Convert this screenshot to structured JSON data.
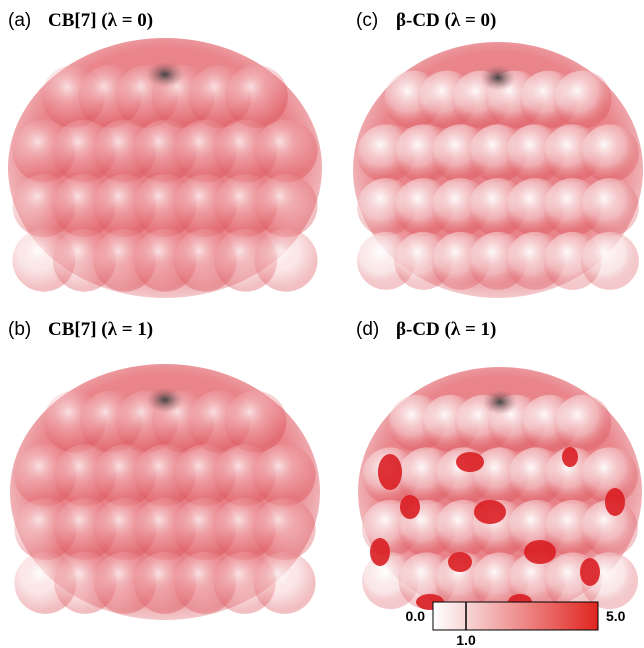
{
  "panels": [
    {
      "letter": "(a)",
      "title": "CB[7] (λ = 0)"
    },
    {
      "letter": "(b)",
      "title": "CB[7] (λ = 1)"
    },
    {
      "letter": "(c)",
      "title": "β-CD (λ = 0)"
    },
    {
      "letter": "(d)",
      "title": "β-CD (λ = 1)"
    }
  ],
  "colorbar": {
    "range": [
      0,
      5
    ],
    "ticks": [
      {
        "value": 0,
        "label": "0.0"
      },
      {
        "value": 1,
        "label": "1.0"
      },
      {
        "value": 5,
        "label": "5.0"
      }
    ]
  }
}
